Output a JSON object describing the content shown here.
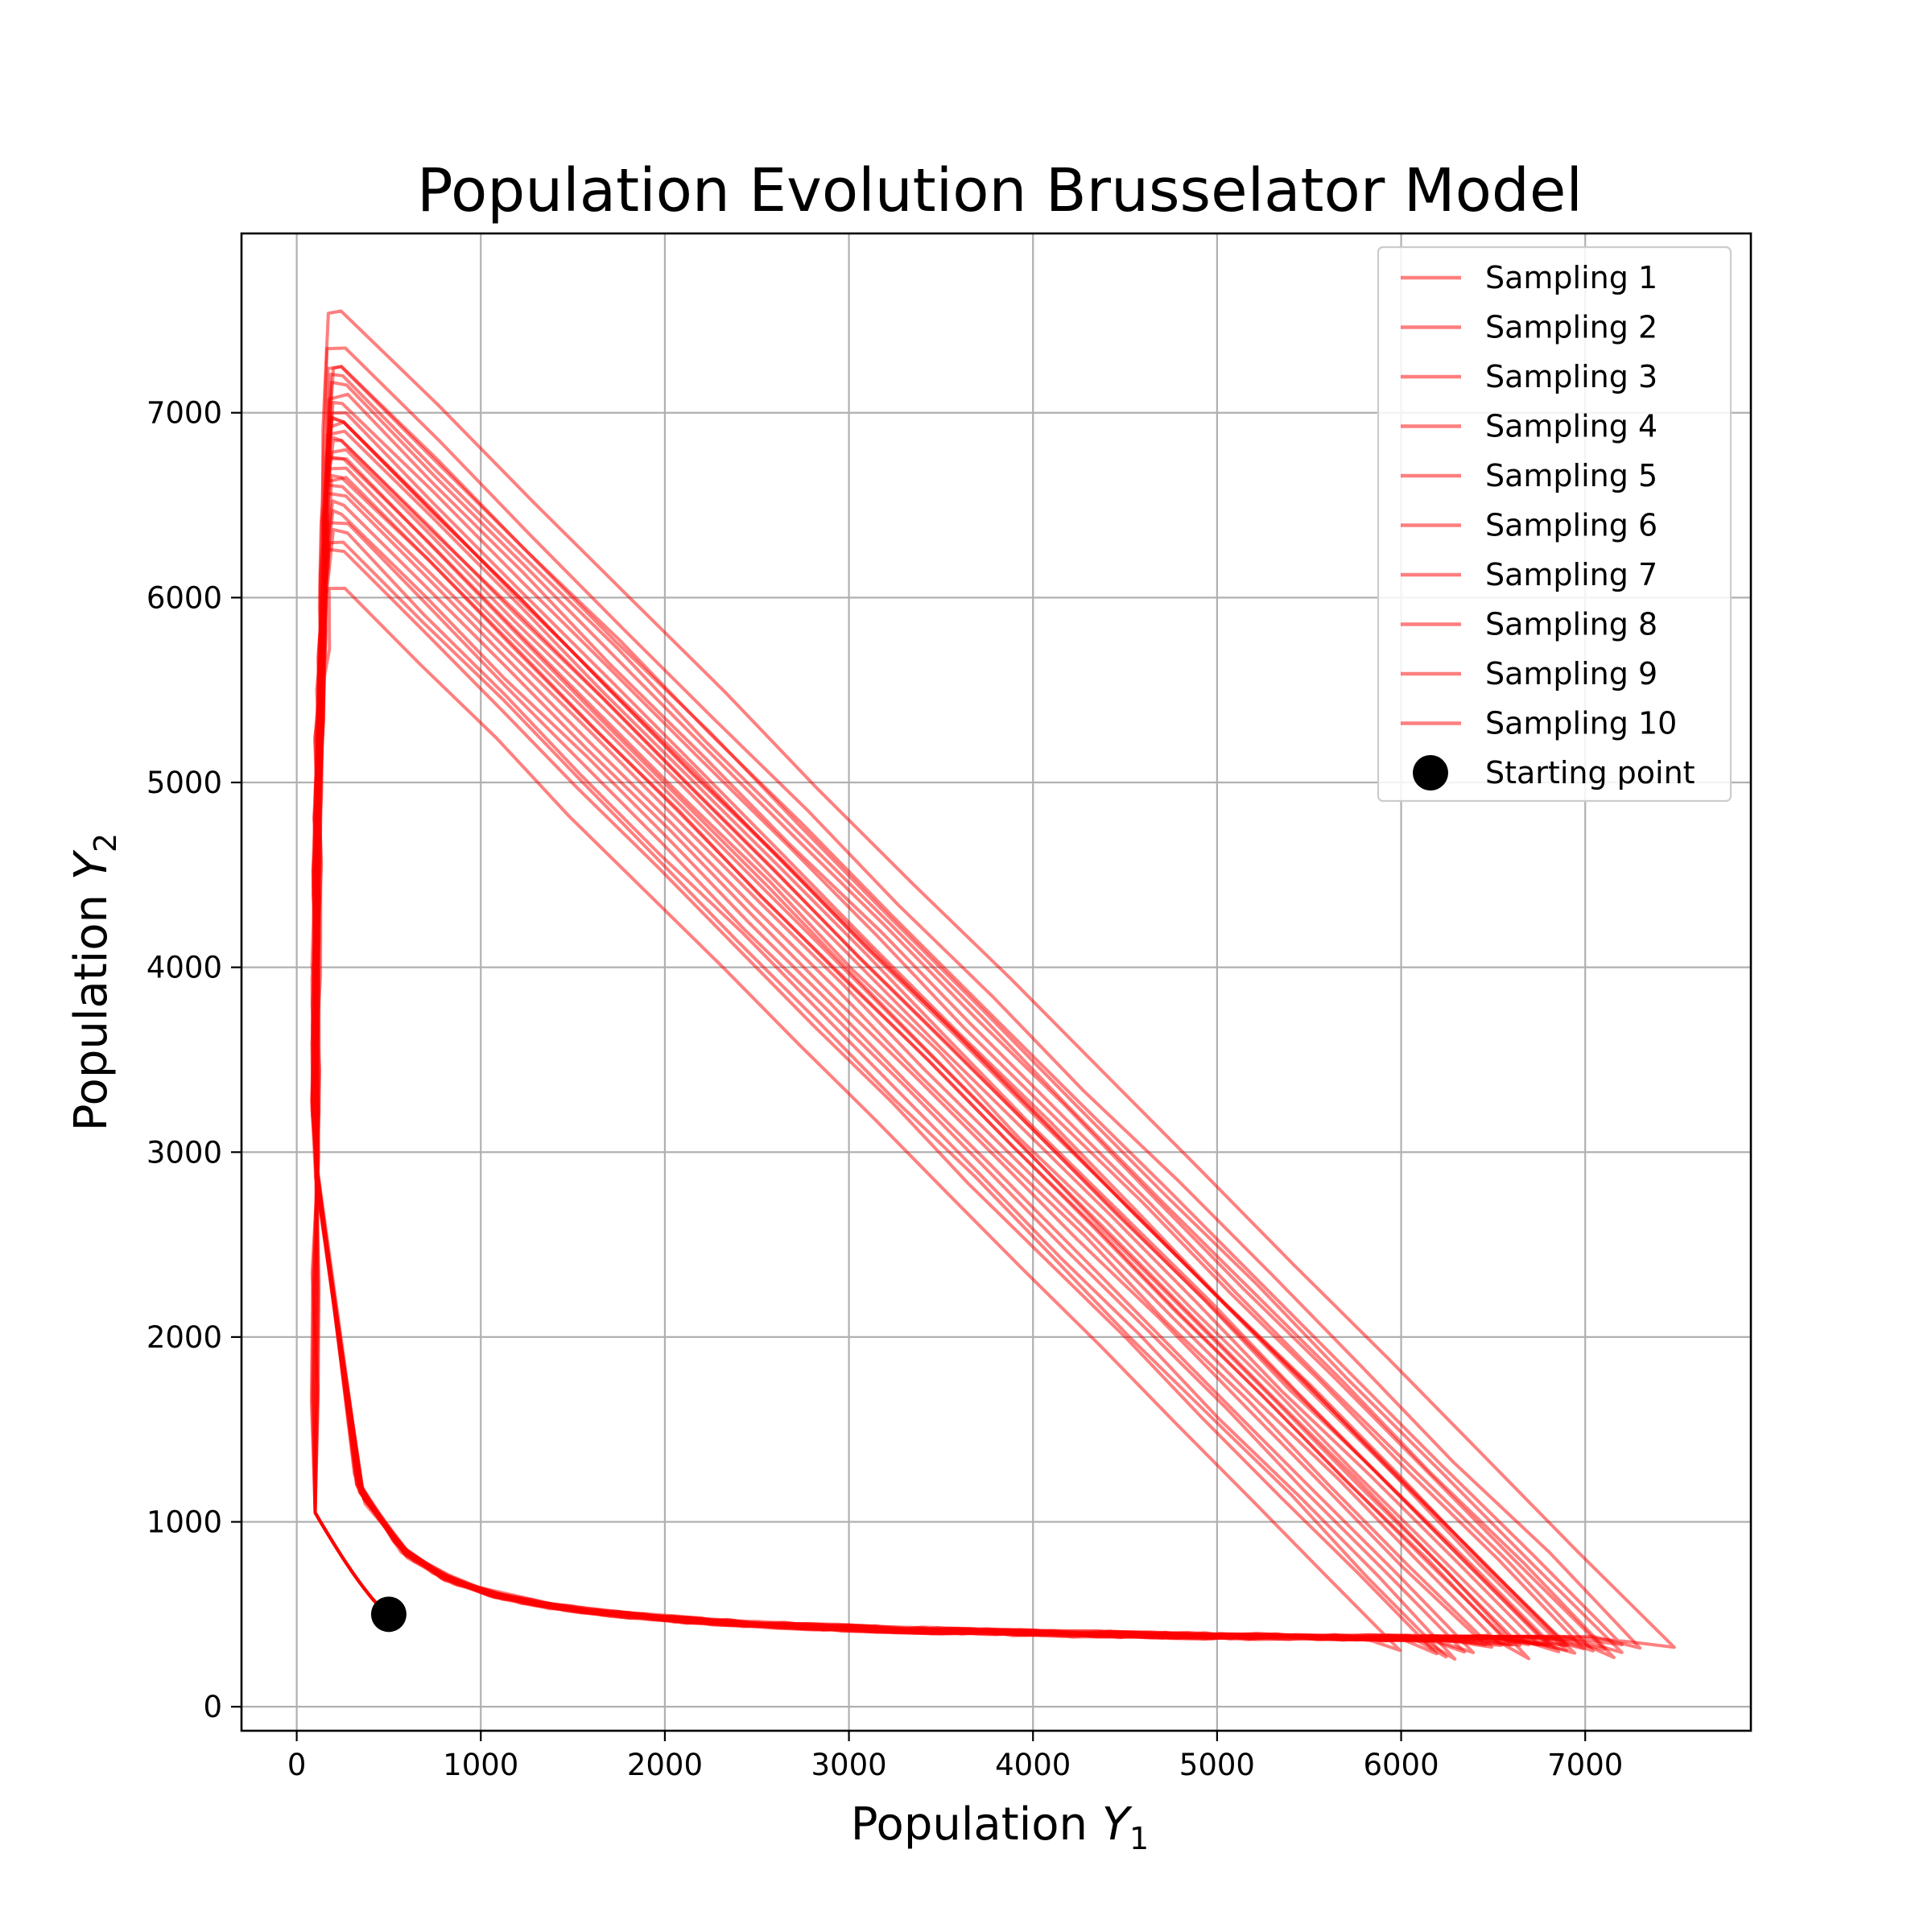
{
  "chart_data": {
    "type": "line",
    "title": "Population Evolution Brusselator Model",
    "xlabel_prefix": "Population ",
    "xlabel_var": "Y",
    "xlabel_sub": "1",
    "ylabel_prefix": "Population ",
    "ylabel_var": "Y",
    "ylabel_sub": "2",
    "xlim": [
      -300,
      7900
    ],
    "ylim": [
      -130,
      7970
    ],
    "xticks": [
      0,
      1000,
      2000,
      3000,
      4000,
      5000,
      6000,
      7000
    ],
    "yticks": [
      0,
      1000,
      2000,
      3000,
      4000,
      5000,
      6000,
      7000
    ],
    "grid": true,
    "legend_position": "top-right",
    "line_color": "#ff0000",
    "line_alpha": 0.5,
    "starting_point": {
      "label": "Starting point",
      "x": 500,
      "y": 500,
      "color": "#000000"
    },
    "series": [
      {
        "name": "Sampling 1",
        "cycles": [
          [
            7480,
            7550
          ],
          [
            7200,
            7250
          ],
          [
            6900,
            6950
          ]
        ]
      },
      {
        "name": "Sampling 2",
        "cycles": [
          [
            7300,
            7350
          ],
          [
            6700,
            6750
          ],
          [
            6400,
            6450
          ]
        ]
      },
      {
        "name": "Sampling 3",
        "cycles": [
          [
            7000,
            7050
          ],
          [
            6600,
            6650
          ],
          [
            6300,
            6350
          ]
        ]
      },
      {
        "name": "Sampling 4",
        "cycles": [
          [
            7100,
            7150
          ],
          [
            6800,
            6850
          ],
          [
            6500,
            6550
          ]
        ]
      },
      {
        "name": "Sampling 5",
        "cycles": [
          [
            6900,
            6950
          ],
          [
            6450,
            6500
          ],
          [
            6200,
            6250
          ]
        ]
      },
      {
        "name": "Sampling 6",
        "cycles": [
          [
            7050,
            7100
          ],
          [
            6750,
            6800
          ],
          [
            6550,
            6600
          ]
        ]
      },
      {
        "name": "Sampling 7",
        "cycles": [
          [
            6850,
            6900
          ],
          [
            6600,
            6650
          ],
          [
            6350,
            6400
          ]
        ]
      },
      {
        "name": "Sampling 8",
        "cycles": [
          [
            7200,
            7250
          ],
          [
            6900,
            6950
          ],
          [
            6700,
            6750
          ]
        ]
      },
      {
        "name": "Sampling 9",
        "cycles": [
          [
            6950,
            7000
          ],
          [
            6650,
            6700
          ],
          [
            6000,
            6050
          ]
        ]
      },
      {
        "name": "Sampling 10",
        "cycles": [
          [
            7150,
            7200
          ],
          [
            6800,
            6850
          ],
          [
            6250,
            6300
          ]
        ]
      }
    ]
  }
}
